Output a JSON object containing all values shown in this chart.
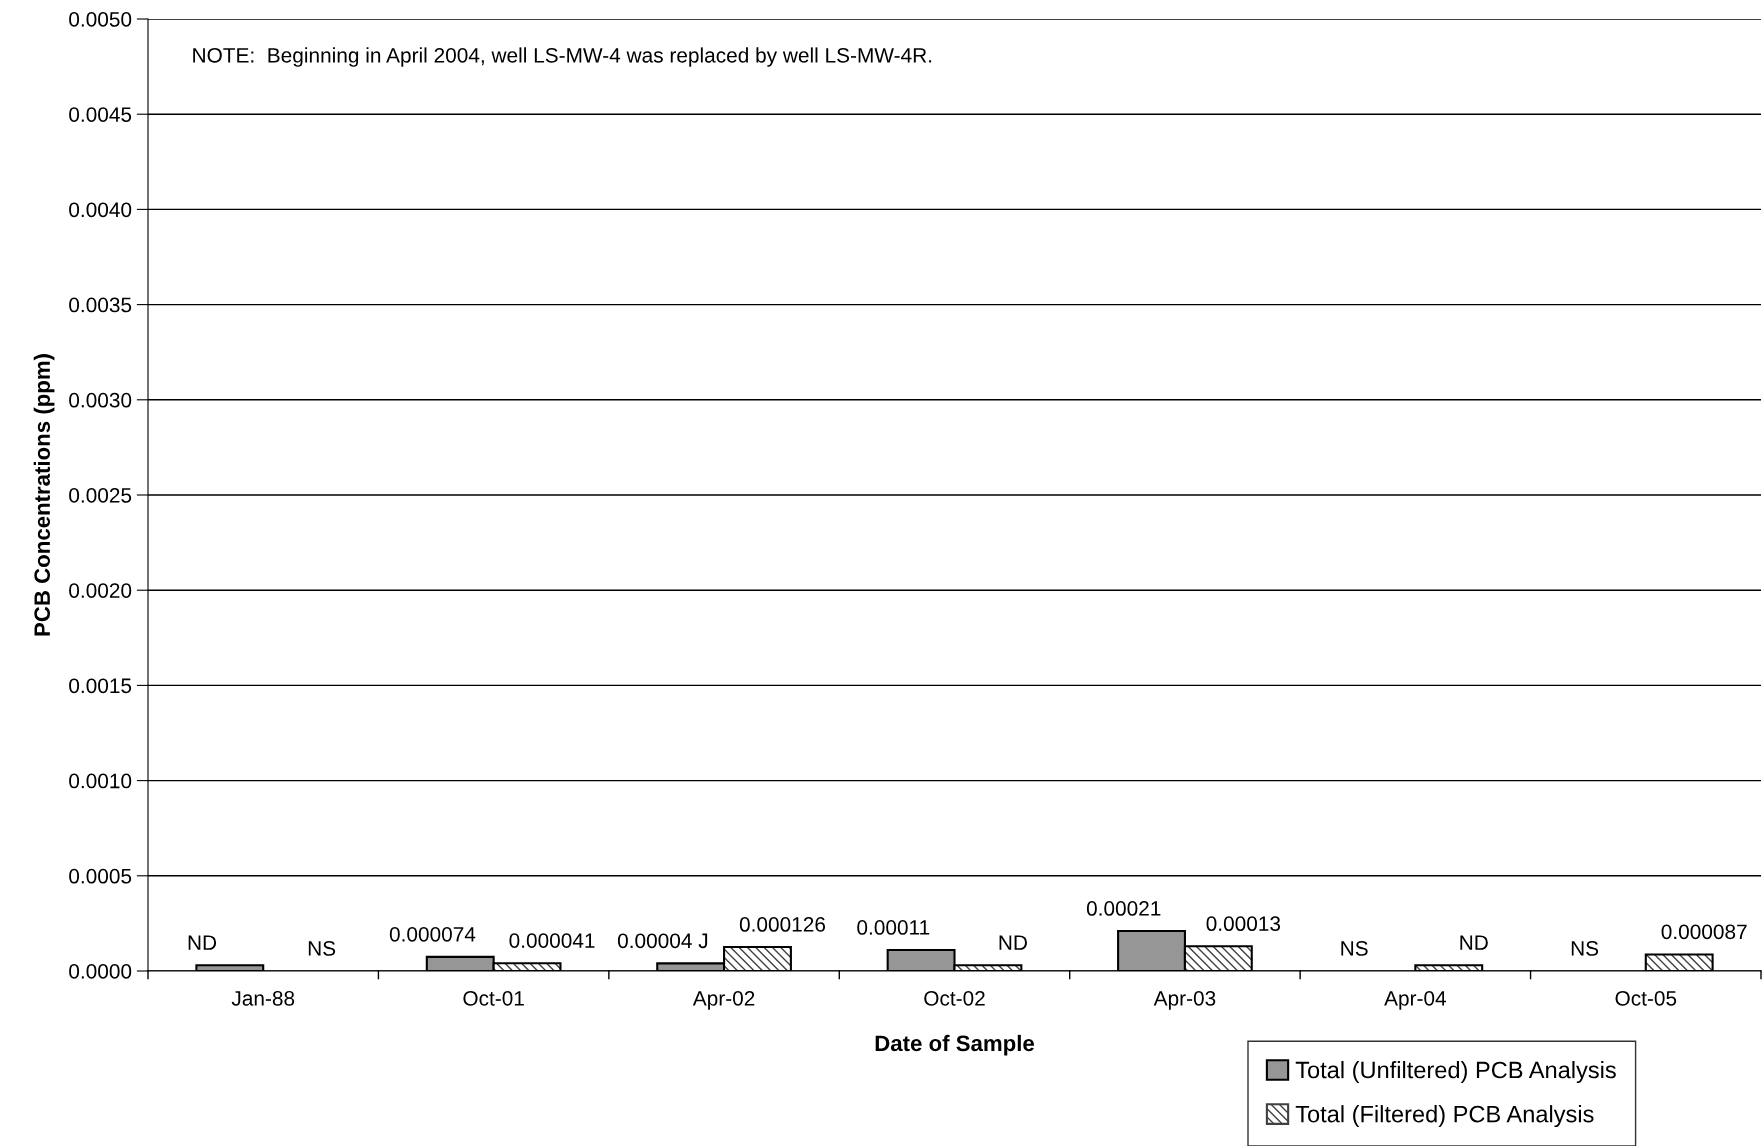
{
  "chart_data": {
    "type": "bar",
    "xlabel": "Date of Sample",
    "ylabel": "PCB Concentrations (ppm)",
    "categories": [
      "Jan-88",
      "Oct-01",
      "Apr-02",
      "Oct-02",
      "Apr-03",
      "Apr-04",
      "Oct-05"
    ],
    "series": [
      {
        "name": "Total (Unfiltered) PCB Analysis",
        "color": "#969696",
        "values": [
          3e-05,
          7.4e-05,
          4e-05,
          0.00011,
          0.00021,
          null,
          null
        ],
        "value_labels": [
          "ND",
          "0.000074",
          "0.00004 J",
          "0.00011",
          "0.00021",
          "NS",
          "NS"
        ]
      },
      {
        "name": "Total (Filtered) PCB Analysis",
        "color": "#404040",
        "values": [
          null,
          4.1e-05,
          0.000126,
          3e-05,
          0.00013,
          3e-05,
          8.7e-05
        ],
        "value_labels": [
          "NS",
          "0.000041",
          "0.000126",
          "ND",
          "0.00013",
          "ND",
          "0.000087"
        ]
      }
    ],
    "ylim": [
      0,
      0.005
    ],
    "yticks": [
      {
        "value": 0,
        "label": "0.0000"
      },
      {
        "value": 0.0005,
        "label": "0.0005"
      },
      {
        "value": 0.001,
        "label": "0.0010"
      },
      {
        "value": 0.0015,
        "label": "0.0015"
      },
      {
        "value": 0.002,
        "label": "0.0020"
      },
      {
        "value": 0.0025,
        "label": "0.0025"
      },
      {
        "value": 0.003,
        "label": "0.0030"
      },
      {
        "value": 0.0035,
        "label": "0.0035"
      },
      {
        "value": 0.004,
        "label": "0.0040"
      },
      {
        "value": 0.0045,
        "label": "0.0045"
      },
      {
        "value": 0.005,
        "label": "0.0050"
      }
    ],
    "grid": "y",
    "legend": "bottom right",
    "annotations": [
      "NOTE:  Beginning in April 2004, well LS-MW-4 was replaced by well LS-MW-4R."
    ]
  }
}
